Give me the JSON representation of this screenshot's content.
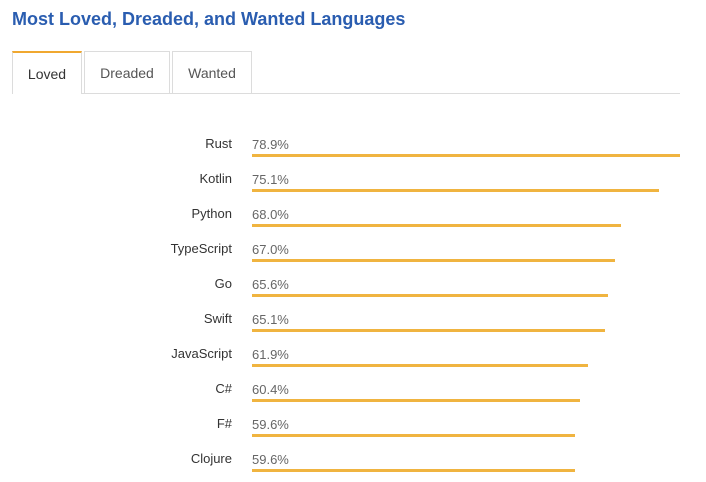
{
  "title": "Most Loved, Dreaded, and Wanted Languages",
  "tabs": [
    {
      "label": "Loved",
      "active": true
    },
    {
      "label": "Dreaded",
      "active": false
    },
    {
      "label": "Wanted",
      "active": false
    }
  ],
  "colors": {
    "title": "#2a5db0",
    "bar": "#f0b440",
    "active_tab_accent": "#f0a830"
  },
  "chart_data": {
    "type": "bar",
    "orientation": "horizontal",
    "categories": [
      "Rust",
      "Kotlin",
      "Python",
      "TypeScript",
      "Go",
      "Swift",
      "JavaScript",
      "C#",
      "F#",
      "Clojure"
    ],
    "values": [
      78.9,
      75.1,
      68.0,
      67.0,
      65.6,
      65.1,
      61.9,
      60.4,
      59.6,
      59.6
    ],
    "value_labels": [
      "78.9%",
      "75.1%",
      "68.0%",
      "67.0%",
      "65.6%",
      "65.1%",
      "61.9%",
      "60.4%",
      "59.6%",
      "59.6%"
    ],
    "grid": false,
    "legend": "none"
  }
}
